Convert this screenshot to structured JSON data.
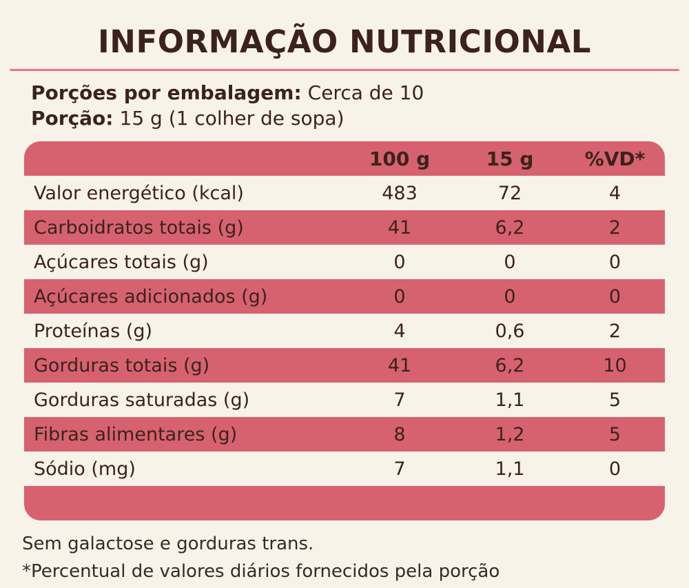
{
  "header": {
    "title": "INFORMAÇÃO NUTRICIONAL"
  },
  "serving": {
    "servings_label": "Porções por embalagem:",
    "servings_value": "Cerca de 10",
    "portion_label": "Porção:",
    "portion_value": "15 g (1 colher de sopa)"
  },
  "table": {
    "columns": [
      "100 g",
      "15 g",
      "%VD*"
    ],
    "rows": [
      {
        "label": "Valor energético (kcal)",
        "per100": "483",
        "per15": "72",
        "vd": "4"
      },
      {
        "label": "Carboidratos totais (g)",
        "per100": "41",
        "per15": "6,2",
        "vd": "2"
      },
      {
        "label": "Açúcares totais (g)",
        "per100": "0",
        "per15": "0",
        "vd": "0"
      },
      {
        "label": "Açúcares adicionados (g)",
        "per100": "0",
        "per15": "0",
        "vd": "0"
      },
      {
        "label": "Proteínas (g)",
        "per100": "4",
        "per15": "0,6",
        "vd": "2"
      },
      {
        "label": "Gorduras totais (g)",
        "per100": "41",
        "per15": "6,2",
        "vd": "10"
      },
      {
        "label": "Gorduras saturadas (g)",
        "per100": "7",
        "per15": "1,1",
        "vd": "5"
      },
      {
        "label": "Fibras alimentares (g)",
        "per100": "8",
        "per15": "1,2",
        "vd": "5"
      },
      {
        "label": "Sódio (mg)",
        "per100": "7",
        "per15": "1,1",
        "vd": "0"
      }
    ]
  },
  "footer": {
    "note1": "Sem galactose e gorduras trans.",
    "note2": "*Percentual de valores diários fornecidos pela porção"
  },
  "colors": {
    "background": "#f8f3e9",
    "accent_pink": "#d7626f",
    "divider_pink": "#e27986",
    "brown_text": "#3b231c",
    "note_text": "#2e2d29"
  }
}
